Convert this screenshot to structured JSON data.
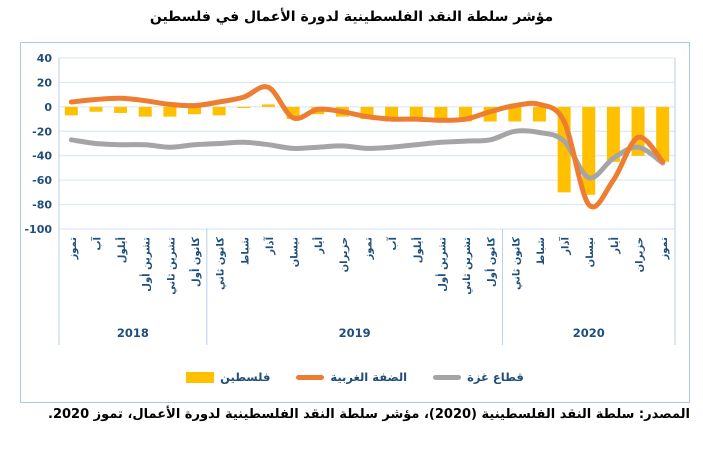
{
  "title": "مؤشر سلطة النقد الفلسطينية لدورة الأعمال في فلسطين",
  "source_text": "المصدر: سلطة النقد الفلسطينية (2020)، مؤشر سلطة النقد الفلسطينية لدورة الأعمال، تموز 2020.",
  "chart_data": {
    "type": "combo bar+line (monthly business-cycle index)",
    "categories": [
      "تموز",
      "آب",
      "أيلول",
      "تشرين أول",
      "تشرين ثاني",
      "كانون أول",
      "كانون ثاني",
      "شباط",
      "آذار",
      "نيسان",
      "أيار",
      "حزيران",
      "تموز",
      "آب",
      "أيلول",
      "تشرين أول",
      "تشرين ثاني",
      "كانون أول",
      "كانون ثاني",
      "شباط",
      "آذار",
      "نيسان",
      "أيار",
      "حزيران",
      "تموز"
    ],
    "year_groups": [
      {
        "label": "2018",
        "months": 6
      },
      {
        "label": "2019",
        "months": 12
      },
      {
        "label": "2020",
        "months": 7
      }
    ],
    "series": [
      {
        "name": "فلسطين",
        "type": "bar",
        "color": "#FFC000",
        "values": [
          -7,
          -4,
          -5,
          -8,
          -8,
          -6,
          -7,
          -1,
          2,
          -10,
          -6,
          -8,
          -10,
          -12,
          -12,
          -12,
          -12,
          -12,
          -12,
          -12,
          -70,
          -72,
          -45,
          -40,
          -45
        ]
      },
      {
        "name": "الضفة الغربية",
        "type": "line",
        "color": "#ED7D31",
        "values": [
          4,
          6,
          7,
          5,
          2,
          1,
          4,
          8,
          16,
          -9,
          -2,
          -4,
          -8,
          -10,
          -10,
          -11,
          -10,
          -4,
          1,
          2,
          -12,
          -80,
          -60,
          -25,
          -45
        ]
      },
      {
        "name": "قطاع غزة",
        "type": "line",
        "color": "#A5A5A5",
        "values": [
          -27,
          -30,
          -31,
          -31,
          -33,
          -31,
          -30,
          -29,
          -31,
          -34,
          -33,
          -32,
          -34,
          -33,
          -31,
          -29,
          -28,
          -27,
          -20,
          -21,
          -28,
          -58,
          -42,
          -33,
          -46
        ]
      }
    ],
    "y_ticks": [
      40,
      20,
      0,
      -20,
      -40,
      -60,
      -80,
      -100
    ],
    "ylim": [
      -100,
      40
    ],
    "grid": "horizontal light-blue gridlines, vertical year separators",
    "legend_position": "bottom-center inside chart area",
    "colors": {
      "grid": "#D6E4F2",
      "sep": "#B7CFE8",
      "label": "#1F4E79",
      "axis": "#B7CFE8"
    }
  }
}
